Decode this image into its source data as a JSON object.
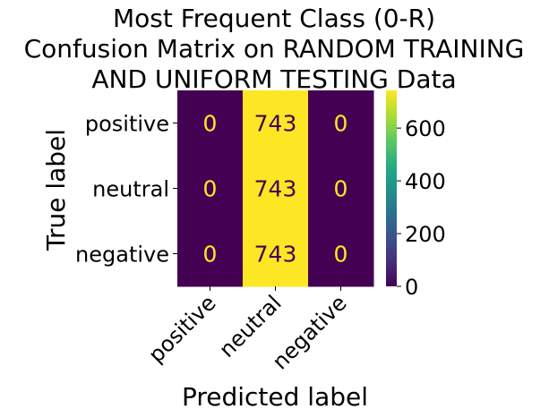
{
  "chart_data": {
    "type": "heatmap",
    "title": [
      "Most Frequent Class (0-R)",
      "Confusion Matrix on RANDOM TRAINING",
      "AND UNIFORM TESTING Data"
    ],
    "xlabel": "Predicted label",
    "ylabel": "True label",
    "x_categories": [
      "positive",
      "neutral",
      "negative"
    ],
    "y_categories": [
      "positive",
      "neutral",
      "negative"
    ],
    "values": [
      [
        0,
        743,
        0
      ],
      [
        0,
        743,
        0
      ],
      [
        0,
        743,
        0
      ]
    ],
    "colormap": "viridis",
    "vmin": 0,
    "vmax": 743,
    "colorbar_ticks": [
      0,
      200,
      400,
      600
    ],
    "colors": {
      "low": "#440154",
      "high": "#fde725"
    }
  }
}
